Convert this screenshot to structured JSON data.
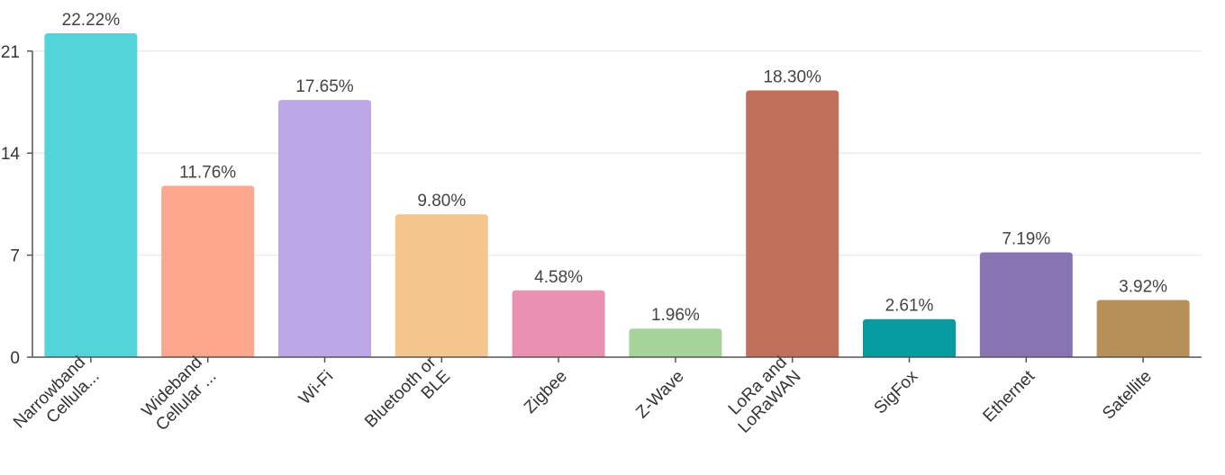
{
  "chart_data": {
    "type": "bar",
    "categories": [
      "Narrowband Cellula...",
      "Wideband Cellular ...",
      "Wi-Fi",
      "Bluetooth or BLE",
      "Zigbee",
      "Z-Wave",
      "LoRa and LoRaWAN",
      "SigFox",
      "Ethernet",
      "Satellite"
    ],
    "category_lines": [
      [
        "Narrowband",
        "Cellula..."
      ],
      [
        "Wideband",
        "Cellular ..."
      ],
      [
        "Wi-Fi"
      ],
      [
        "Bluetooth or",
        "BLE"
      ],
      [
        "Zigbee"
      ],
      [
        "Z-Wave"
      ],
      [
        "LoRa and",
        "LoRaWAN"
      ],
      [
        "SigFox"
      ],
      [
        "Ethernet"
      ],
      [
        "Satellite"
      ]
    ],
    "values": [
      22.22,
      11.76,
      17.65,
      9.8,
      4.58,
      1.96,
      18.3,
      2.61,
      7.19,
      3.92
    ],
    "value_labels": [
      "22.22%",
      "11.76%",
      "17.65%",
      "9.80%",
      "4.58%",
      "1.96%",
      "18.30%",
      "2.61%",
      "7.19%",
      "3.92%"
    ],
    "colors": [
      "#53d4da",
      "#fca68d",
      "#bca8e9",
      "#f4c68d",
      "#ea91b1",
      "#a5d399",
      "#c2705b",
      "#069b9f",
      "#8874b0",
      "#b98f59"
    ],
    "yticks": [
      0,
      7,
      14,
      21
    ],
    "ytick_labels": [
      "0",
      "7",
      "14",
      "21"
    ],
    "ylim": [
      0,
      21
    ],
    "xlabel": "",
    "ylabel": "",
    "grid": true
  }
}
